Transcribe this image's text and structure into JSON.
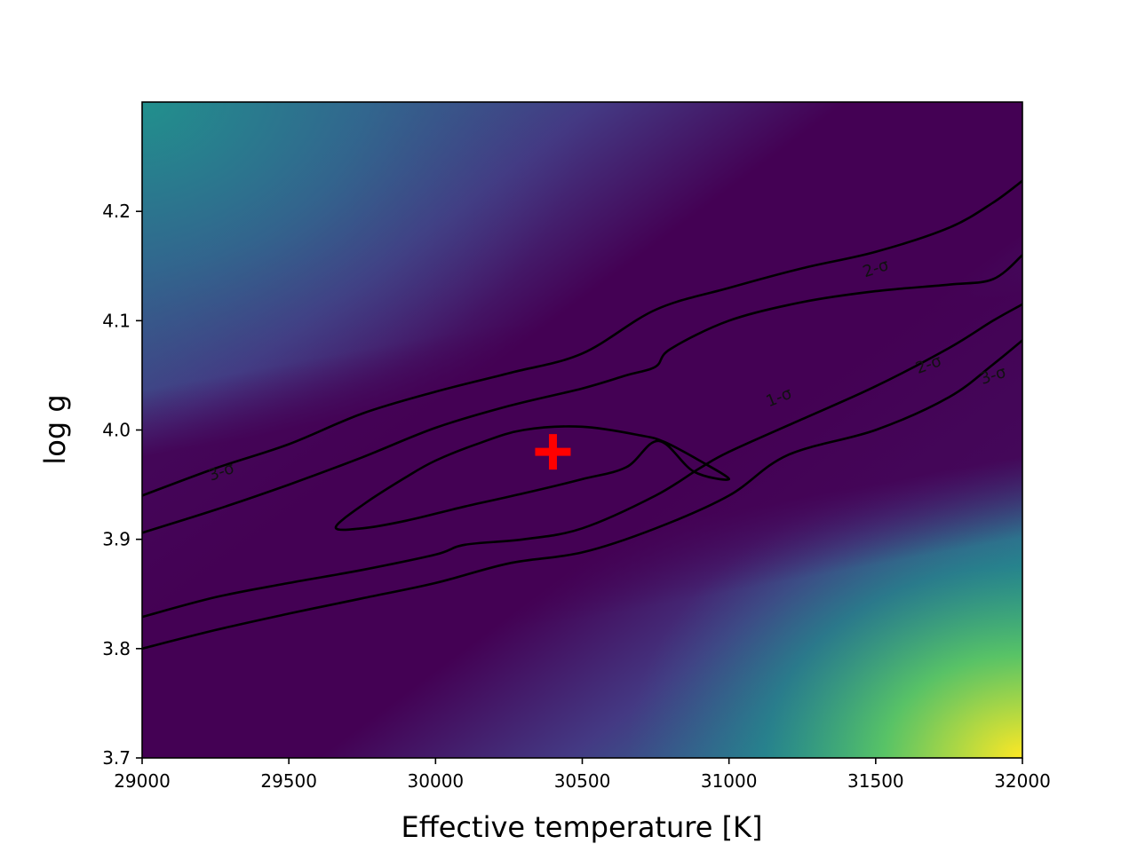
{
  "chart_data": {
    "type": "heatmap",
    "subtype": "chi-square map with confidence contours",
    "title": "",
    "xlabel": "Effective temperature [K]",
    "ylabel": "log g",
    "xlim": [
      29000,
      32000
    ],
    "ylim": [
      3.7,
      4.3
    ],
    "x_ticks": [
      29000,
      29500,
      30000,
      30500,
      31000,
      31500,
      32000
    ],
    "y_ticks": [
      3.7,
      3.8,
      3.9,
      4.0,
      4.1,
      4.2
    ],
    "x_tick_labels": [
      "29000",
      "29500",
      "30000",
      "30500",
      "31000",
      "31500",
      "32000"
    ],
    "y_tick_labels": [
      "3.7",
      "3.8",
      "3.9",
      "4.0",
      "4.1",
      "4.2"
    ],
    "colormap": "viridis",
    "grid": false,
    "best_fit": {
      "x": 30400,
      "y": 3.98,
      "marker": "+",
      "color": "#ff0000"
    },
    "contours": [
      {
        "name": "1-σ",
        "closed": true,
        "points": [
          [
            29660,
            3.911
          ],
          [
            29760,
            3.933
          ],
          [
            29900,
            3.957
          ],
          [
            30000,
            3.972
          ],
          [
            30150,
            3.988
          ],
          [
            30300,
            4.0
          ],
          [
            30500,
            4.003
          ],
          [
            30700,
            3.995
          ],
          [
            30780,
            3.989
          ],
          [
            30900,
            3.972
          ],
          [
            31000,
            3.955
          ],
          [
            30880,
            3.962
          ],
          [
            30760,
            3.99
          ],
          [
            30650,
            3.966
          ],
          [
            30500,
            3.955
          ],
          [
            30300,
            3.942
          ],
          [
            30100,
            3.93
          ],
          [
            29900,
            3.917
          ],
          [
            29750,
            3.91
          ],
          [
            29660,
            3.911
          ]
        ]
      },
      {
        "name": "2-σ",
        "closed": false,
        "segments": [
          [
            [
              29000,
              3.906
            ],
            [
              29250,
              3.927
            ],
            [
              29500,
              3.95
            ],
            [
              29750,
              3.975
            ],
            [
              30000,
              4.002
            ],
            [
              30250,
              4.022
            ],
            [
              30500,
              4.038
            ],
            [
              30650,
              4.05
            ],
            [
              30750,
              4.058
            ],
            [
              30800,
              4.074
            ],
            [
              31000,
              4.1
            ],
            [
              31250,
              4.117
            ],
            [
              31500,
              4.127
            ],
            [
              31750,
              4.133
            ],
            [
              31900,
              4.138
            ],
            [
              32000,
              4.16
            ]
          ],
          [
            [
              29000,
              3.829
            ],
            [
              29250,
              3.847
            ],
            [
              29500,
              3.86
            ],
            [
              29750,
              3.872
            ],
            [
              30000,
              3.886
            ],
            [
              30100,
              3.895
            ],
            [
              30300,
              3.9
            ],
            [
              30500,
              3.91
            ],
            [
              30750,
              3.94
            ],
            [
              30900,
              3.965
            ],
            [
              31000,
              3.98
            ],
            [
              31250,
              4.01
            ],
            [
              31500,
              4.04
            ],
            [
              31750,
              4.075
            ],
            [
              31900,
              4.1
            ],
            [
              32000,
              4.115
            ]
          ]
        ]
      },
      {
        "name": "3-σ",
        "closed": false,
        "segments": [
          [
            [
              29000,
              3.94
            ],
            [
              29250,
              3.965
            ],
            [
              29500,
              3.987
            ],
            [
              29750,
              4.015
            ],
            [
              30000,
              4.035
            ],
            [
              30250,
              4.052
            ],
            [
              30500,
              4.07
            ],
            [
              30750,
              4.11
            ],
            [
              31000,
              4.13
            ],
            [
              31250,
              4.148
            ],
            [
              31500,
              4.163
            ],
            [
              31750,
              4.185
            ],
            [
              31900,
              4.208
            ],
            [
              32000,
              4.228
            ]
          ],
          [
            [
              29000,
              3.8
            ],
            [
              29250,
              3.817
            ],
            [
              29500,
              3.832
            ],
            [
              29750,
              3.846
            ],
            [
              30000,
              3.86
            ],
            [
              30250,
              3.878
            ],
            [
              30500,
              3.888
            ],
            [
              30750,
              3.91
            ],
            [
              31000,
              3.94
            ],
            [
              31200,
              3.977
            ],
            [
              31500,
              4.0
            ],
            [
              31750,
              4.03
            ],
            [
              31900,
              4.06
            ],
            [
              32000,
              4.082
            ]
          ]
        ]
      }
    ],
    "contour_labels": [
      {
        "text": "3-σ",
        "x": 29270,
        "y": 3.962,
        "angle": -20
      },
      {
        "text": "2-σ",
        "x": 31500,
        "y": 4.148,
        "angle": -18
      },
      {
        "text": "1-σ",
        "x": 31170,
        "y": 4.03,
        "angle": -22
      },
      {
        "text": "2-σ",
        "x": 31680,
        "y": 4.06,
        "angle": -20
      },
      {
        "text": "3-σ",
        "x": 31900,
        "y": 4.05,
        "angle": -18
      }
    ],
    "colors": {
      "contour_line": "#000000",
      "marker": "#ff0000"
    }
  }
}
